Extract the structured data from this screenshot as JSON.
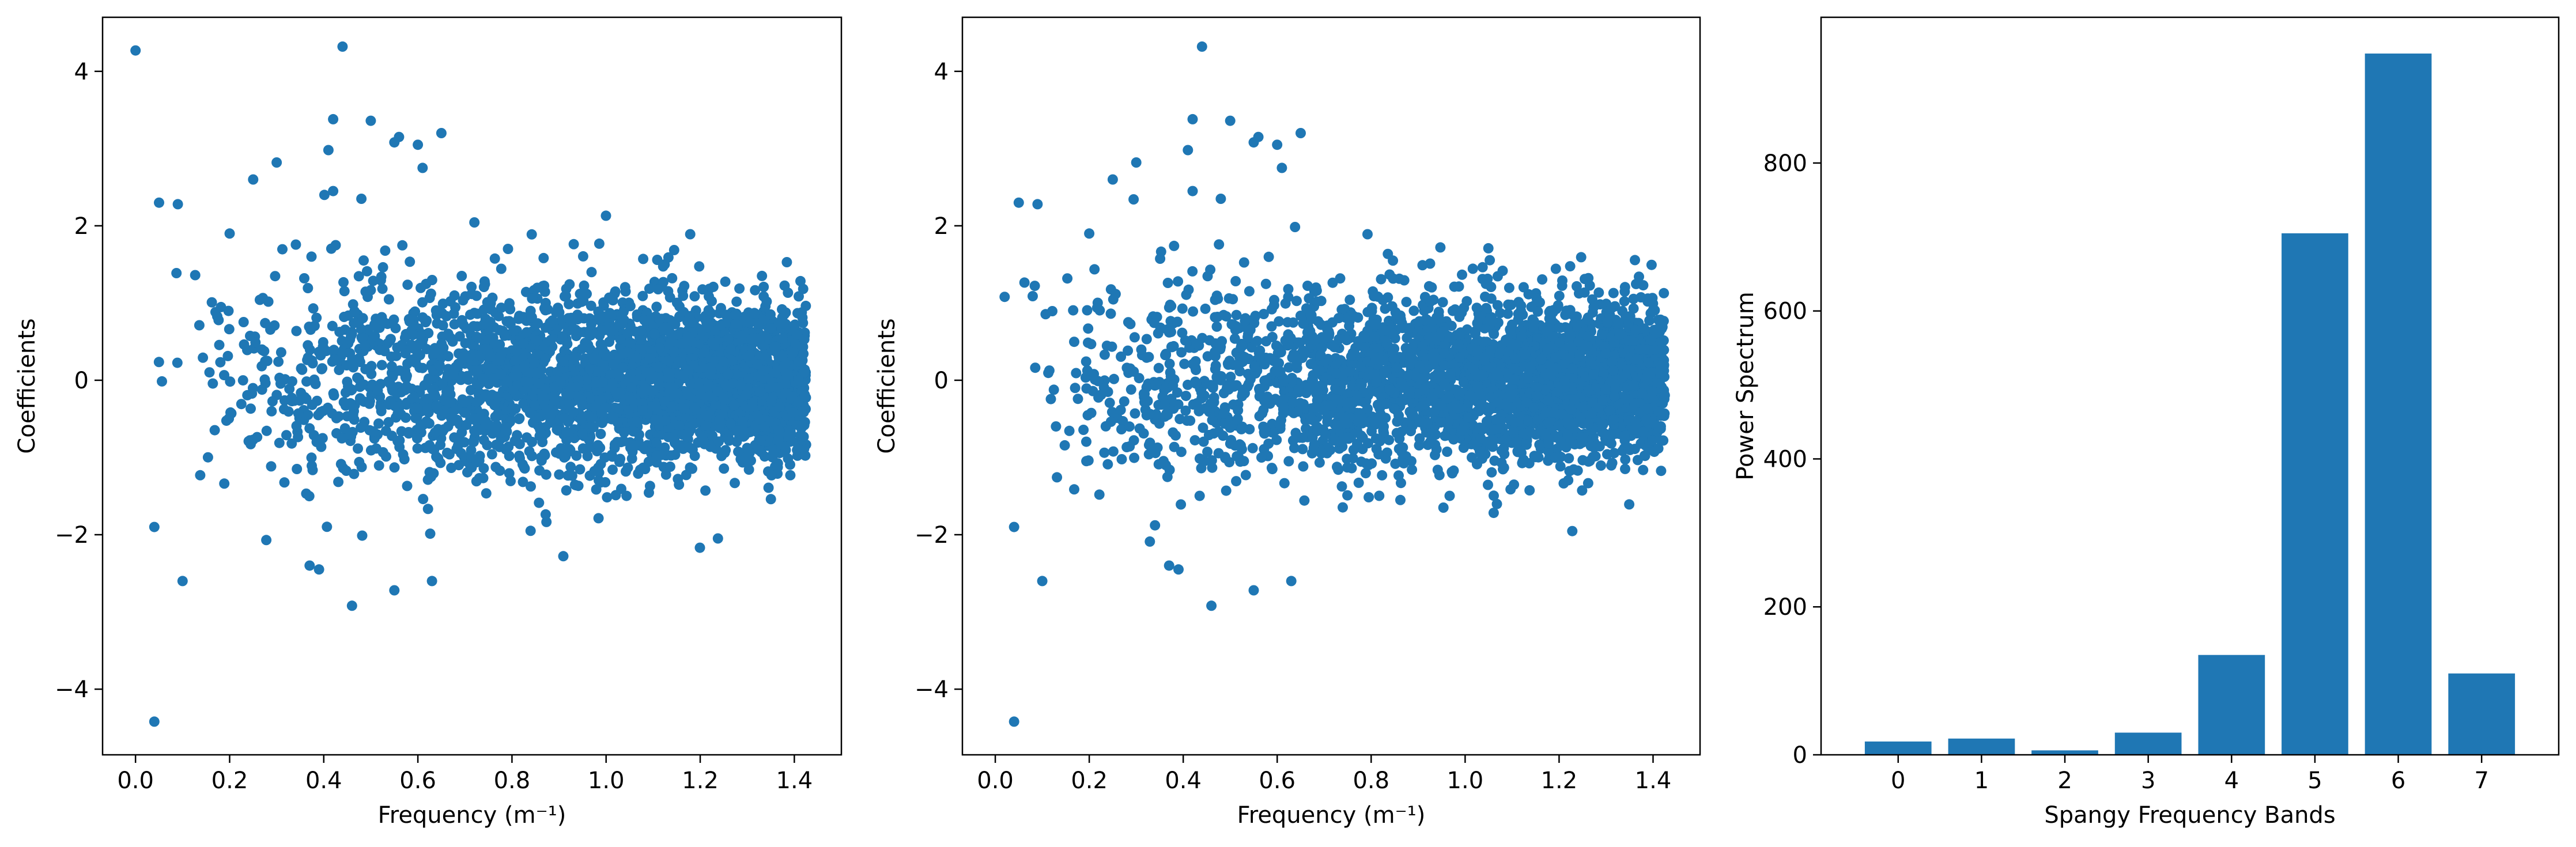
{
  "chart_data": [
    {
      "type": "scatter",
      "xlabel": "Frequency (m⁻¹)",
      "ylabel": "Coefficients",
      "xlim": [
        -0.07,
        1.5
      ],
      "ylim": [
        -4.85,
        4.7
      ],
      "xticks": [
        0.0,
        0.2,
        0.4,
        0.6,
        0.8,
        1.0,
        1.2,
        1.4
      ],
      "xtick_labels": [
        "0.0",
        "0.2",
        "0.4",
        "0.6",
        "0.8",
        "1.0",
        "1.2",
        "1.4"
      ],
      "yticks": [
        -4,
        -2,
        0,
        2,
        4
      ],
      "ytick_labels": [
        "−4",
        "−2",
        "0",
        "2",
        "4"
      ],
      "color": "#1f77b4",
      "grid": false,
      "points_count": 3200,
      "outliers": [
        [
          0.0,
          4.27
        ],
        [
          0.04,
          -4.42
        ],
        [
          0.44,
          4.32
        ],
        [
          0.42,
          3.38
        ],
        [
          0.5,
          3.36
        ],
        [
          0.56,
          3.15
        ],
        [
          0.6,
          3.05
        ],
        [
          0.65,
          3.2
        ],
        [
          0.3,
          2.82
        ],
        [
          0.41,
          2.98
        ],
        [
          0.55,
          3.08
        ],
        [
          0.05,
          2.3
        ],
        [
          0.09,
          2.28
        ],
        [
          0.1,
          -2.6
        ],
        [
          0.04,
          -1.9
        ],
        [
          0.46,
          -2.92
        ],
        [
          0.55,
          -2.72
        ],
        [
          0.63,
          -2.6
        ],
        [
          0.37,
          -2.4
        ],
        [
          0.39,
          -2.45
        ],
        [
          0.61,
          2.75
        ],
        [
          0.48,
          2.35
        ],
        [
          0.25,
          2.6
        ],
        [
          0.42,
          2.45
        ],
        [
          0.2,
          1.9
        ]
      ]
    },
    {
      "type": "scatter",
      "xlabel": "Frequency (m⁻¹)",
      "ylabel": "Coefficients",
      "xlim": [
        -0.07,
        1.5
      ],
      "ylim": [
        -4.85,
        4.7
      ],
      "xticks": [
        0.0,
        0.2,
        0.4,
        0.6,
        0.8,
        1.0,
        1.2,
        1.4
      ],
      "xtick_labels": [
        "0.0",
        "0.2",
        "0.4",
        "0.6",
        "0.8",
        "1.0",
        "1.2",
        "1.4"
      ],
      "yticks": [
        -4,
        -2,
        0,
        2,
        4
      ],
      "ytick_labels": [
        "−4",
        "−2",
        "0",
        "2",
        "4"
      ],
      "color": "#1f77b4",
      "grid": false,
      "points_count": 3200,
      "outliers": [
        [
          0.04,
          -4.42
        ],
        [
          0.44,
          4.32
        ],
        [
          0.42,
          3.38
        ],
        [
          0.5,
          3.36
        ],
        [
          0.56,
          3.15
        ],
        [
          0.6,
          3.05
        ],
        [
          0.65,
          3.2
        ],
        [
          0.3,
          2.82
        ],
        [
          0.41,
          2.98
        ],
        [
          0.55,
          3.08
        ],
        [
          0.05,
          2.3
        ],
        [
          0.09,
          2.28
        ],
        [
          0.1,
          -2.6
        ],
        [
          0.04,
          -1.9
        ],
        [
          0.46,
          -2.92
        ],
        [
          0.55,
          -2.72
        ],
        [
          0.63,
          -2.6
        ],
        [
          0.37,
          -2.4
        ],
        [
          0.39,
          -2.45
        ],
        [
          0.61,
          2.75
        ],
        [
          0.48,
          2.35
        ],
        [
          0.25,
          2.6
        ],
        [
          0.42,
          2.45
        ],
        [
          0.2,
          1.9
        ]
      ]
    },
    {
      "type": "bar",
      "xlabel": "Spangy Frequency Bands",
      "ylabel": "Power Spectrum",
      "categories": [
        "0",
        "1",
        "2",
        "3",
        "4",
        "5",
        "6",
        "7"
      ],
      "values": [
        18,
        22,
        6,
        30,
        135,
        705,
        948,
        110
      ],
      "ylim": [
        0,
        997
      ],
      "yticks": [
        0,
        200,
        400,
        600,
        800
      ],
      "ytick_labels": [
        "0",
        "200",
        "400",
        "600",
        "800"
      ],
      "color": "#1f77b4",
      "grid": false
    }
  ]
}
